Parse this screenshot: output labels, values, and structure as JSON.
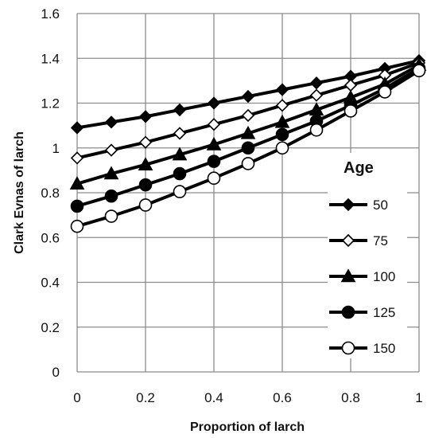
{
  "chart_data": {
    "type": "line",
    "xlabel": "Proportion of larch",
    "ylabel": "Clark Evnas of larch",
    "xlim": [
      0,
      1
    ],
    "ylim": [
      0,
      1.6
    ],
    "x_ticks": [
      "0",
      "0.2",
      "0.4",
      "0.6",
      "0.8",
      "1"
    ],
    "y_ticks": [
      "0",
      "0.2",
      "0.4",
      "0.6",
      "0.8",
      "1",
      "1.2",
      "1.4",
      "1.6"
    ],
    "grid": true,
    "legend": {
      "title": "Age",
      "placement": "right"
    },
    "x": [
      0,
      0.1,
      0.2,
      0.3,
      0.4,
      0.5,
      0.6,
      0.7,
      0.8,
      0.9,
      1.0
    ],
    "series": [
      {
        "name": "50",
        "marker": "diamond",
        "fill": "#000000",
        "values": [
          1.09,
          1.115,
          1.14,
          1.17,
          1.2,
          1.23,
          1.26,
          1.29,
          1.32,
          1.355,
          1.39
        ]
      },
      {
        "name": "75",
        "marker": "diamond",
        "fill": "#ffffff",
        "values": [
          0.955,
          0.99,
          1.025,
          1.065,
          1.105,
          1.145,
          1.19,
          1.235,
          1.28,
          1.325,
          1.38
        ]
      },
      {
        "name": "100",
        "marker": "triangle",
        "fill": "#000000",
        "values": [
          0.84,
          0.885,
          0.925,
          0.97,
          1.015,
          1.065,
          1.115,
          1.17,
          1.225,
          1.285,
          1.37
        ]
      },
      {
        "name": "125",
        "marker": "circle",
        "fill": "#000000",
        "values": [
          0.74,
          0.785,
          0.835,
          0.885,
          0.94,
          1.0,
          1.06,
          1.12,
          1.19,
          1.265,
          1.355
        ]
      },
      {
        "name": "150",
        "marker": "circle",
        "fill": "#ffffff",
        "values": [
          0.65,
          0.695,
          0.745,
          0.805,
          0.865,
          0.93,
          1.0,
          1.08,
          1.165,
          1.25,
          1.345
        ]
      }
    ]
  }
}
